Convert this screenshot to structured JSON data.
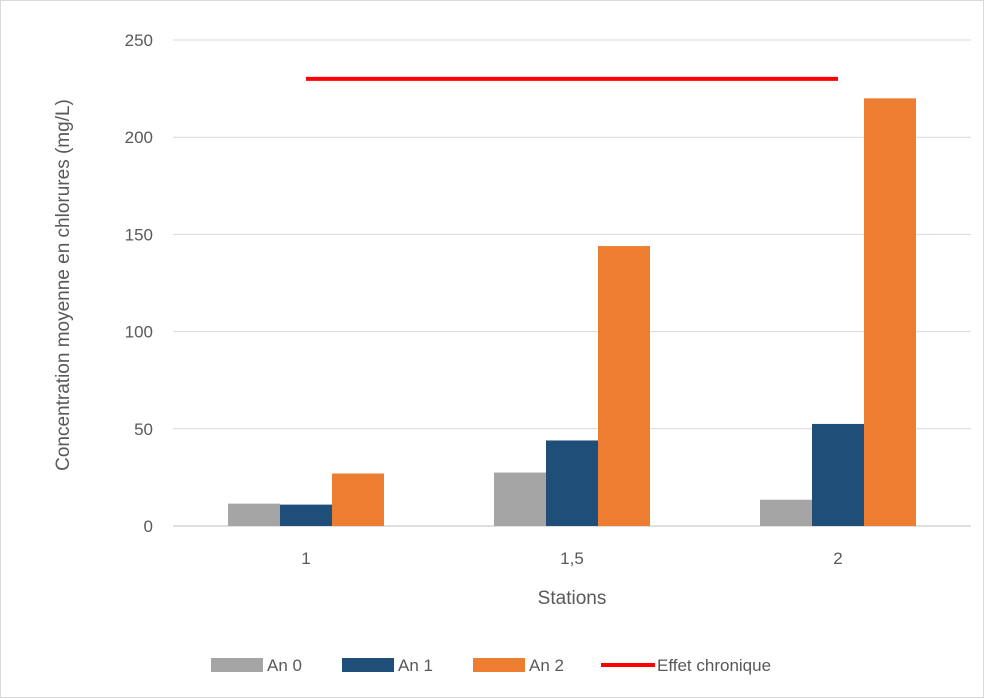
{
  "chart_data": {
    "type": "bar",
    "title": "",
    "xlabel": "Stations",
    "ylabel": "Concentration moyenne en chlorures (mg/L)",
    "ylim": [
      0,
      250
    ],
    "yticks": [
      0,
      50,
      100,
      150,
      200,
      250
    ],
    "categories": [
      "1",
      "1,5",
      "2"
    ],
    "series": [
      {
        "name": "An 0",
        "color": "#a5a5a5",
        "values": [
          11.5,
          27.5,
          13.5
        ]
      },
      {
        "name": "An 1",
        "color": "#1f4e79",
        "values": [
          11,
          44,
          52.5
        ]
      },
      {
        "name": "An 2",
        "color": "#ed7d31",
        "values": [
          27,
          144,
          220
        ]
      }
    ],
    "reference_line": {
      "name": "Effet chronique",
      "color": "#ff0000",
      "value": 230,
      "from_category": "1",
      "to_category": "2"
    },
    "grid": true,
    "legend_position": "bottom"
  }
}
